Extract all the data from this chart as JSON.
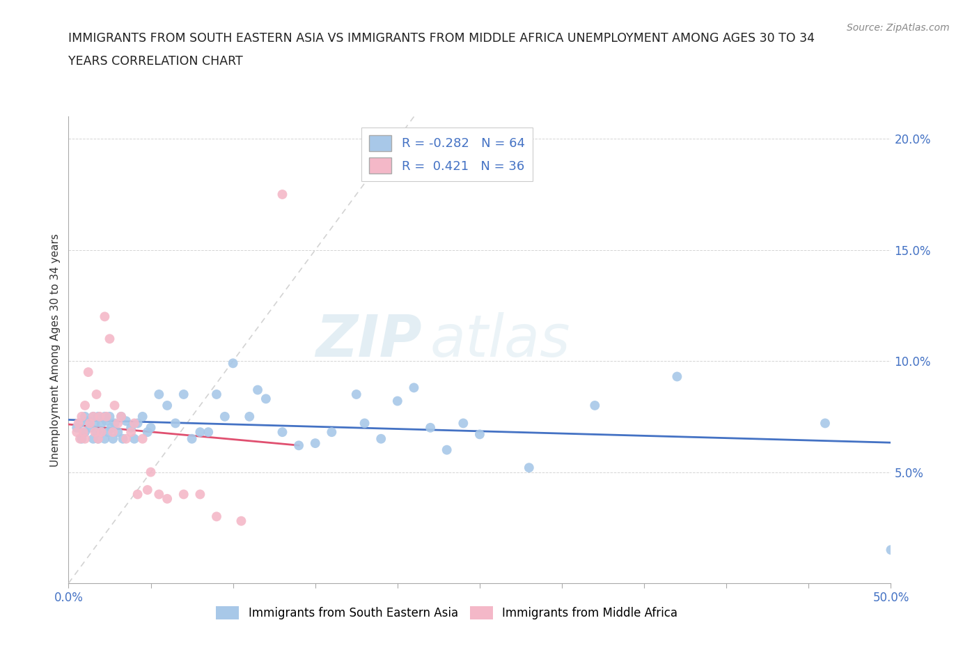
{
  "title_line1": "IMMIGRANTS FROM SOUTH EASTERN ASIA VS IMMIGRANTS FROM MIDDLE AFRICA UNEMPLOYMENT AMONG AGES 30 TO 34",
  "title_line2": "YEARS CORRELATION CHART",
  "source": "Source: ZipAtlas.com",
  "ylabel_label": "Unemployment Among Ages 30 to 34 years",
  "xlim": [
    0.0,
    0.5
  ],
  "ylim": [
    0.0,
    0.21
  ],
  "xticks": [
    0.0,
    0.05,
    0.1,
    0.15,
    0.2,
    0.25,
    0.3,
    0.35,
    0.4,
    0.45,
    0.5
  ],
  "yticks": [
    0.0,
    0.05,
    0.1,
    0.15,
    0.2
  ],
  "blue_color": "#a8c8e8",
  "pink_color": "#f4b8c8",
  "blue_line_color": "#4472c4",
  "pink_line_color": "#e05070",
  "diag_line_color": "#c8c8c8",
  "legend_R1": "-0.282",
  "legend_N1": "64",
  "legend_R2": "0.421",
  "legend_N2": "36",
  "watermark_zip": "ZIP",
  "watermark_atlas": "atlas",
  "blue_label": "Immigrants from South Eastern Asia",
  "pink_label": "Immigrants from Middle Africa",
  "blue_scatter_x": [
    0.005,
    0.007,
    0.008,
    0.01,
    0.01,
    0.012,
    0.013,
    0.015,
    0.015,
    0.016,
    0.017,
    0.018,
    0.018,
    0.02,
    0.02,
    0.022,
    0.022,
    0.023,
    0.024,
    0.025,
    0.026,
    0.027,
    0.028,
    0.03,
    0.032,
    0.033,
    0.035,
    0.038,
    0.04,
    0.042,
    0.045,
    0.048,
    0.05,
    0.055,
    0.06,
    0.065,
    0.07,
    0.075,
    0.08,
    0.085,
    0.09,
    0.095,
    0.1,
    0.11,
    0.115,
    0.12,
    0.13,
    0.14,
    0.15,
    0.16,
    0.175,
    0.18,
    0.19,
    0.2,
    0.21,
    0.22,
    0.23,
    0.24,
    0.25,
    0.28,
    0.32,
    0.37,
    0.46,
    0.5
  ],
  "blue_scatter_y": [
    0.07,
    0.072,
    0.065,
    0.075,
    0.068,
    0.073,
    0.07,
    0.075,
    0.065,
    0.072,
    0.068,
    0.075,
    0.065,
    0.068,
    0.072,
    0.075,
    0.065,
    0.073,
    0.068,
    0.075,
    0.07,
    0.065,
    0.072,
    0.068,
    0.075,
    0.065,
    0.073,
    0.07,
    0.065,
    0.072,
    0.075,
    0.068,
    0.07,
    0.085,
    0.08,
    0.072,
    0.085,
    0.065,
    0.068,
    0.068,
    0.085,
    0.075,
    0.099,
    0.075,
    0.087,
    0.083,
    0.068,
    0.062,
    0.063,
    0.068,
    0.085,
    0.072,
    0.065,
    0.082,
    0.088,
    0.07,
    0.06,
    0.072,
    0.067,
    0.052,
    0.08,
    0.093,
    0.072,
    0.015
  ],
  "pink_scatter_x": [
    0.005,
    0.006,
    0.007,
    0.008,
    0.009,
    0.01,
    0.01,
    0.012,
    0.013,
    0.015,
    0.016,
    0.017,
    0.018,
    0.019,
    0.02,
    0.022,
    0.023,
    0.025,
    0.027,
    0.028,
    0.03,
    0.032,
    0.035,
    0.038,
    0.04,
    0.042,
    0.045,
    0.048,
    0.05,
    0.055,
    0.06,
    0.07,
    0.08,
    0.09,
    0.105,
    0.13
  ],
  "pink_scatter_y": [
    0.068,
    0.072,
    0.065,
    0.075,
    0.068,
    0.08,
    0.065,
    0.095,
    0.072,
    0.075,
    0.068,
    0.085,
    0.065,
    0.075,
    0.068,
    0.12,
    0.075,
    0.11,
    0.068,
    0.08,
    0.072,
    0.075,
    0.065,
    0.068,
    0.072,
    0.04,
    0.065,
    0.042,
    0.05,
    0.04,
    0.038,
    0.04,
    0.04,
    0.03,
    0.028,
    0.175
  ]
}
